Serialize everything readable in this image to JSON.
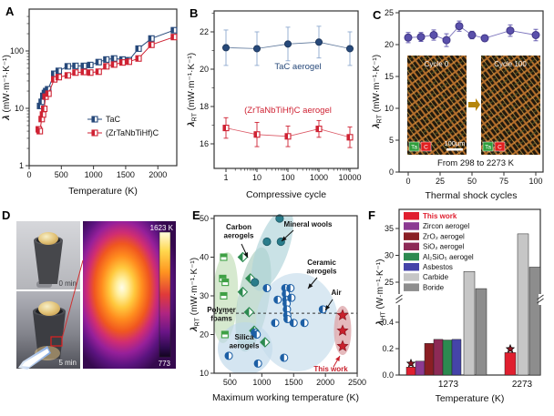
{
  "figure": {
    "panels": {
      "a": {
        "letter": "A"
      },
      "b": {
        "letter": "B"
      },
      "c": {
        "letter": "C"
      },
      "d": {
        "letter": "D"
      },
      "e": {
        "letter": "E"
      },
      "f": {
        "letter": "F"
      }
    }
  },
  "chart_data": [
    {
      "id": "A",
      "type": "line",
      "xlabel": "Temperature (K)",
      "ylabel": {
        "pre": "λ",
        "sub": "",
        "rest": " (mW·m⁻¹·K⁻¹)"
      },
      "xlim": [
        0,
        2280
      ],
      "xticks": [
        0,
        500,
        1000,
        1500,
        2000
      ],
      "yscale": "log",
      "yticks": [
        1,
        10,
        100
      ],
      "ylim": [
        1,
        470
      ],
      "series": [
        {
          "name": "TaC",
          "color": "#27497a",
          "x": [
            170,
            195,
            220,
            245,
            265,
            295,
            390,
            460,
            600,
            720,
            850,
            950,
            1080,
            1200,
            1320,
            1450,
            1550,
            1700,
            1900,
            2250
          ],
          "y": [
            11,
            13,
            16.5,
            18.5,
            20,
            21.5,
            40,
            45,
            54,
            55,
            55,
            57,
            64,
            71,
            74,
            71,
            69,
            110,
            165,
            230
          ],
          "err": [
            0,
            0,
            0,
            0,
            0,
            0,
            0,
            0,
            0,
            0,
            0,
            0,
            0,
            0,
            5,
            5,
            5,
            8,
            12,
            20
          ]
        },
        {
          "name": "(ZrTaNbTiHf)C",
          "color": "#cf2233",
          "x": [
            150,
            165,
            195,
            215,
            235,
            255,
            300,
            390,
            460,
            600,
            720,
            850,
            950,
            1080,
            1200,
            1320,
            1450,
            1550,
            1700,
            1900,
            2250
          ],
          "y": [
            4.3,
            4.0,
            6.5,
            7.8,
            9.8,
            16,
            18,
            32,
            35,
            37.5,
            42,
            43,
            42,
            43.5,
            54,
            58,
            63,
            65,
            74,
            128,
            175
          ],
          "err": [
            0.3,
            0.3,
            0.5,
            0.6,
            0.7,
            1,
            1,
            2,
            2,
            2,
            2,
            2,
            2,
            2,
            3,
            4,
            4,
            5,
            8,
            12,
            18
          ]
        }
      ]
    },
    {
      "id": "B",
      "type": "line",
      "xlabel": "Compressive cycle",
      "ylabel": {
        "pre": "λ",
        "sub": "RT",
        "rest": " (mW·m⁻¹·K⁻¹)"
      },
      "xscale": "log",
      "xticks": [
        1,
        10,
        100,
        1000,
        10000
      ],
      "yticks": [
        16,
        18,
        20,
        22
      ],
      "series": [
        {
          "name": "TaC aerogel",
          "color": "#27497a",
          "err_color": "#8ea9cf",
          "marker": "circle",
          "x": [
            1,
            10,
            100,
            1000,
            10000
          ],
          "y": [
            21.15,
            21.1,
            21.35,
            21.45,
            21.1
          ],
          "err": [
            0.95,
            0.9,
            0.9,
            0.85,
            0.9
          ],
          "label_pos": [
            124,
            76
          ]
        },
        {
          "name": "(ZrTaNbTiHf)C aerogel",
          "color": "#cf2233",
          "err_color": "#cf2233",
          "marker": "square",
          "x": [
            1,
            10,
            100,
            1000,
            10000
          ],
          "y": [
            16.85,
            16.5,
            16.4,
            16.8,
            16.35
          ],
          "err": [
            0.55,
            0.65,
            0.55,
            0.45,
            0.55
          ],
          "label_pos": [
            113,
            124
          ]
        }
      ]
    },
    {
      "id": "C",
      "type": "line",
      "xlabel": "Thermal shock cycles",
      "ylabel": {
        "pre": "λ",
        "sub": "RT",
        "rest": " (mW·m⁻¹·K⁻¹)"
      },
      "xticks": [
        0,
        25,
        50,
        75,
        100
      ],
      "yticks": [
        0,
        5,
        10,
        15,
        20,
        25
      ],
      "series": [
        {
          "name": "thermal-shock-conductivity",
          "color": "#5a50ab",
          "edge": "#3f3585",
          "x": [
            0,
            10,
            20,
            30,
            40,
            50,
            60,
            80,
            100
          ],
          "y": [
            21.1,
            21.2,
            21.5,
            20.7,
            22.9,
            21.5,
            21.0,
            22.2,
            21.5
          ],
          "err": [
            0.8,
            0.7,
            0.8,
            1.0,
            0.8,
            0.6,
            0.5,
            0.9,
            0.9
          ]
        }
      ],
      "note": "From 298 to 2273 K",
      "insets": {
        "left_label": "Cycle 0",
        "right_label": "Cycle 100",
        "scalebar": "100μm",
        "badges": [
          {
            "label": "Ta",
            "color": "#2f9e3b"
          },
          {
            "label": "C",
            "color": "#e02020"
          }
        ]
      }
    },
    {
      "id": "D",
      "type": "photos",
      "photos": [
        {
          "label": "0 min"
        },
        {
          "label": "5 min"
        }
      ],
      "thermal": {
        "scale_top": "1623 K",
        "scale_bottom": "773"
      }
    },
    {
      "id": "E",
      "type": "scatter",
      "xlabel": "Maximum working temperature (K)",
      "ylabel": {
        "pre": "λ",
        "sub": "RT",
        "rest": " (mW·m⁻¹·K⁻¹)"
      },
      "xlim": [
        250,
        2500
      ],
      "ylim": [
        10,
        51.8
      ],
      "xticks": [
        500,
        1000,
        1500,
        2000,
        2500
      ],
      "yticks": [
        10,
        20,
        30,
        40,
        50
      ],
      "air_line": 25.5,
      "air_label": {
        "text": "Air",
        "pos": [
          164,
          102
        ],
        "arrow": [
          160,
          107,
          152,
          119
        ]
      },
      "groups": [
        {
          "name": "Polymer foams",
          "marker": "square-half",
          "color": "#3fa045",
          "points": [
            [
              400,
              40
            ],
            [
              385,
              34.5
            ],
            [
              425,
              33.5
            ],
            [
              400,
              30
            ],
            [
              420,
              20
            ]
          ],
          "bubble": [
            42,
            105,
            14,
            50,
            3,
            "#c4dfba",
            0.7
          ],
          "label_lines": [
            "Polymer",
            "foams"
          ],
          "label_pos": [
            38,
            121
          ],
          "label_color": "#111111"
        },
        {
          "name": "Carbon aerogels",
          "marker": "diamond-half",
          "color": "#2c8a50",
          "points": [
            [
              700,
              40
            ],
            [
              820,
              34.5
            ],
            [
              700,
              31
            ],
            [
              800,
              25.8
            ],
            [
              880,
              21
            ],
            [
              1050,
              18
            ]
          ],
          "bubble": [
            73,
            107,
            17,
            58,
            10,
            "#a9cdbd",
            0.65
          ],
          "label_lines": [
            "Carbon",
            "aerogels"
          ],
          "label_pos": [
            57,
            30
          ],
          "label_color": "#111111",
          "arrow": [
            60,
            46,
            67,
            61
          ]
        },
        {
          "name": "Mineral wools",
          "marker": "circle-filled",
          "color": "#2a7d8c",
          "points": [
            [
              1280,
              50
            ],
            [
              1080,
              44
            ],
            [
              1300,
              44
            ],
            [
              890,
              33.5
            ]
          ],
          "bubble": [
            94,
            52,
            17,
            48,
            20,
            "#aed3d8",
            0.65
          ],
          "label_lines": [
            "Mineral wools"
          ],
          "label_pos": [
            133,
            27
          ],
          "label_color": "#111111",
          "arrow": [
            117,
            31,
            104,
            43
          ]
        },
        {
          "name": "Silica aerogels",
          "marker": "circle-half",
          "color": "#1d5fa5",
          "points": [
            [
              480,
              14.5
            ],
            [
              890,
              20.5
            ],
            [
              920,
              20
            ],
            [
              940,
              12.5
            ]
          ],
          "bubble": [
            64,
            161,
            30,
            29,
            0,
            "#bdd7ea",
            0.65
          ],
          "label_lines": [
            "Silica",
            "aerogels"
          ],
          "label_pos": [
            63,
            151
          ],
          "label_color": "#111111"
        },
        {
          "name": "Ceramic aerogels",
          "marker": "circle-half",
          "color": "#1d5fa5",
          "points": [
            [
              1080,
              32
            ],
            [
              1210,
              23
            ],
            [
              1250,
              29
            ],
            [
              1370,
              32
            ],
            [
              1378,
              30.5
            ],
            [
              1385,
              29
            ],
            [
              1390,
              28
            ],
            [
              1395,
              26.5
            ],
            [
              1400,
              25
            ],
            [
              1405,
              24
            ],
            [
              1450,
              32
            ],
            [
              1465,
              29.5
            ],
            [
              1500,
              23
            ],
            [
              1670,
              23
            ],
            [
              1350,
              14
            ],
            [
              1960,
              26.5
            ]
          ],
          "bubble": [
            121,
            132,
            45,
            54,
            0,
            "#c5dbeb",
            0.65
          ],
          "label_lines": [
            "Ceramic",
            "aerogels"
          ],
          "label_pos": [
            148,
            69
          ],
          "label_color": "#111111",
          "arrow": [
            143,
            83,
            133,
            95
          ]
        },
        {
          "name": "This work",
          "marker": "star",
          "color": "#c9202c",
          "points": [
            [
              2270,
              25
            ],
            [
              2270,
              21
            ],
            [
              2270,
              17
            ]
          ],
          "bubble": [
            171,
            141,
            9.5,
            27,
            0,
            "#dfa9ad",
            0.8
          ],
          "label_lines": [
            "This work"
          ],
          "label_pos": [
            158,
            186
          ],
          "label_color": "#c9202c",
          "arrow": [
            161,
            181,
            168,
            169
          ],
          "arrow_color": "#c9202c"
        }
      ]
    },
    {
      "id": "F",
      "type": "bar-broken-axis",
      "xlabel": "Temperature (K)",
      "ylabel": {
        "pre": "λ",
        "sub": "HT",
        "rest": " (W·m⁻¹·K⁻¹)"
      },
      "categories": [
        "1273",
        "2273"
      ],
      "upper_ticks": [
        25,
        30,
        35
      ],
      "lower_ticks": [
        "0.0",
        "0.2",
        "0.4"
      ],
      "series": [
        {
          "name": "This work",
          "color": "#e01f2f",
          "values": [
            0.06,
            0.17
          ],
          "star": true,
          "text_color": "#e01f2f"
        },
        {
          "name": "Zircon aerogel",
          "color": "#8c3a92",
          "values": [
            0.105,
            null
          ]
        },
        {
          "name": "ZrO₂ aerogel",
          "color": "#8a1e24",
          "values": [
            0.24,
            null
          ]
        },
        {
          "name": "SiO₂ aerogel",
          "color": "#8d2a56",
          "values": [
            0.27,
            null
          ]
        },
        {
          "name": "Al₂SiO₅ aerogel",
          "color": "#2c8a50",
          "values": [
            0.265,
            null
          ]
        },
        {
          "name": "Asbestos",
          "color": "#4544a9",
          "values": [
            0.27,
            null
          ]
        },
        {
          "name": "Carbide",
          "color": "#c6c6c6",
          "values": [
            27,
            34
          ]
        },
        {
          "name": "Boride",
          "color": "#8d8d8d",
          "values": [
            23.8,
            27.8
          ]
        }
      ]
    }
  ]
}
